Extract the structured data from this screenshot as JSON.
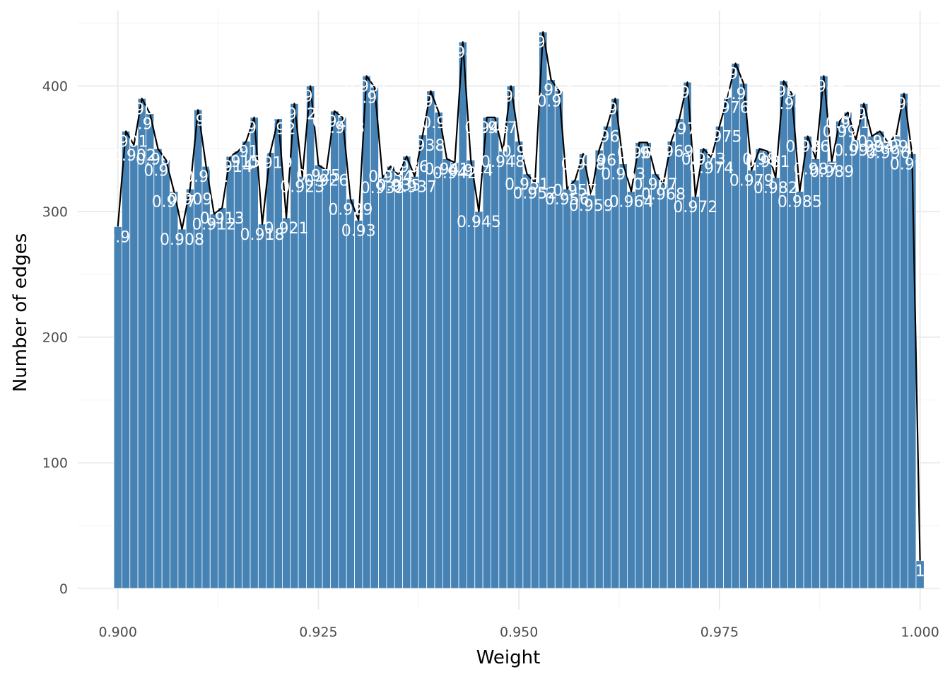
{
  "chart_data": {
    "type": "bar",
    "title": "",
    "xlabel": "Weight",
    "ylabel": "Number of edges",
    "xlim": [
      0.895,
      1.0025
    ],
    "ylim": [
      -17,
      460
    ],
    "x_ticks": [
      0.9,
      0.925,
      0.95,
      0.975,
      1.0
    ],
    "x_tick_labels": [
      "0.900",
      "0.925",
      "0.950",
      "0.975",
      "1.000"
    ],
    "y_ticks": [
      0,
      100,
      200,
      300,
      400
    ],
    "y_tick_labels": [
      "0",
      "100",
      "200",
      "300",
      "400"
    ],
    "grid": true,
    "legend": "none",
    "bar_width": 0.001,
    "bar_color": "#4682B4",
    "line_color": "#000000",
    "label_color": "#ffffff",
    "x": [
      0.9,
      0.901,
      0.902,
      0.903,
      0.904,
      0.905,
      0.906,
      0.907,
      0.908,
      0.909,
      0.91,
      0.911,
      0.912,
      0.913,
      0.914,
      0.915,
      0.916,
      0.917,
      0.918,
      0.919,
      0.92,
      0.921,
      0.922,
      0.923,
      0.924,
      0.925,
      0.926,
      0.927,
      0.928,
      0.929,
      0.93,
      0.931,
      0.932,
      0.933,
      0.934,
      0.935,
      0.936,
      0.937,
      0.938,
      0.939,
      0.94,
      0.941,
      0.942,
      0.943,
      0.944,
      0.945,
      0.946,
      0.947,
      0.948,
      0.949,
      0.95,
      0.951,
      0.952,
      0.953,
      0.954,
      0.955,
      0.956,
      0.957,
      0.958,
      0.959,
      0.96,
      0.961,
      0.962,
      0.963,
      0.964,
      0.965,
      0.966,
      0.967,
      0.968,
      0.969,
      0.97,
      0.971,
      0.972,
      0.973,
      0.974,
      0.975,
      0.976,
      0.977,
      0.978,
      0.979,
      0.98,
      0.981,
      0.982,
      0.983,
      0.984,
      0.985,
      0.986,
      0.987,
      0.988,
      0.989,
      0.99,
      0.991,
      0.992,
      0.993,
      0.994,
      0.995,
      0.996,
      0.997,
      0.998,
      0.999,
      1.0
    ],
    "values": [
      288,
      364,
      353,
      390,
      378,
      350,
      341,
      316,
      286,
      318,
      381,
      336,
      298,
      303,
      344,
      348,
      356,
      375,
      290,
      347,
      374,
      295,
      386,
      328,
      400,
      337,
      333,
      380,
      375,
      310,
      293,
      408,
      399,
      327,
      336,
      329,
      344,
      328,
      361,
      396,
      379,
      342,
      339,
      435,
      341,
      300,
      375,
      375,
      348,
      400,
      356,
      330,
      323,
      443,
      405,
      396,
      318,
      325,
      346,
      313,
      349,
      368,
      390,
      338,
      316,
      355,
      355,
      330,
      322,
      356,
      374,
      403,
      312,
      350,
      343,
      368,
      391,
      418,
      402,
      333,
      350,
      348,
      327,
      404,
      394,
      316,
      360,
      342,
      408,
      340,
      372,
      379,
      357,
      386,
      360,
      364,
      355,
      360,
      394,
      346,
      22
    ],
    "labels": [
      "0.9",
      "0.901",
      "0.902",
      "0.903",
      "0.904",
      "0.905",
      "0.906",
      "0.907",
      "0.908",
      "0.909",
      "0.91",
      "0.911",
      "0.912",
      "0.913",
      "0.914",
      "0.915",
      "0.916",
      "0.917",
      "0.918",
      "0.919",
      "0.92",
      "0.921",
      "0.922",
      "0.923",
      "0.924",
      "0.925",
      "0.926",
      "0.927",
      "0.928",
      "0.929",
      "0.93",
      "0.931",
      "0.932",
      "0.933",
      "0.934",
      "0.935",
      "0.936",
      "0.937",
      "0.938",
      "0.939",
      "0.94",
      "0.941",
      "0.942",
      "0.943",
      "0.944",
      "0.945",
      "0.946",
      "0.947",
      "0.948",
      "0.949",
      "0.95",
      "0.951",
      "0.952",
      "0.953",
      "0.954",
      "0.955",
      "0.956",
      "0.957",
      "0.958",
      "0.959",
      "0.96",
      "0.961",
      "0.962",
      "0.963",
      "0.964",
      "0.965",
      "0.966",
      "0.967",
      "0.968",
      "0.969",
      "0.97",
      "0.971",
      "0.972",
      "0.973",
      "0.974",
      "0.975",
      "0.976",
      "0.977",
      "0.978",
      "0.979",
      "0.98",
      "0.981",
      "0.982",
      "0.983",
      "0.984",
      "0.985",
      "0.986",
      "0.987",
      "0.988",
      "0.989",
      "0.99",
      "0.991",
      "0.992",
      "0.993",
      "0.994",
      "0.995",
      "0.996",
      "0.997",
      "0.998",
      "0.999",
      "1"
    ]
  }
}
